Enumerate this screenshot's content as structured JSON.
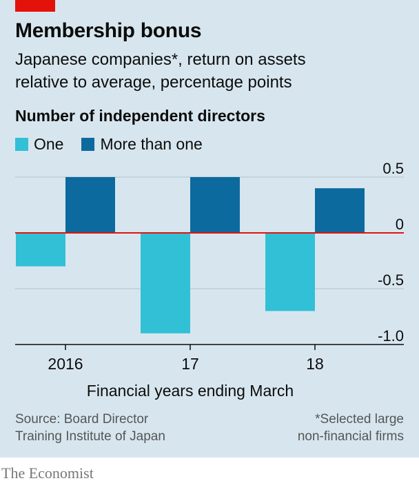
{
  "header": {
    "title": "Membership bonus",
    "subtitle_line1": "Japanese companies*, return on assets",
    "subtitle_line2": "relative to average, percentage points"
  },
  "legend": {
    "title": "Number of independent directors",
    "items": [
      {
        "label": "One",
        "color": "#32c0d6"
      },
      {
        "label": "More than one",
        "color": "#0d6a9e"
      }
    ]
  },
  "chart_data": {
    "type": "bar",
    "categories": [
      "2016",
      "17",
      "18"
    ],
    "series": [
      {
        "name": "One",
        "values": [
          -0.3,
          -0.9,
          -0.7
        ],
        "color": "#32c0d6"
      },
      {
        "name": "More than one",
        "values": [
          0.5,
          0.5,
          0.4
        ],
        "color": "#0d6a9e"
      }
    ],
    "ylim": [
      -1.0,
      0.5
    ],
    "yticks": [
      0.5,
      0,
      -0.5,
      -1.0
    ],
    "ytick_labels": [
      "0.5",
      "0",
      "-0.5",
      "-1.0"
    ],
    "y_axis_side": "right",
    "grid": true,
    "zero_line_color": "#e3120b",
    "xlabel": "Financial years ending March",
    "title": "Membership bonus",
    "subtitle": "Japanese companies*, return on assets relative to average, percentage points"
  },
  "footer": {
    "source_line1": "Source: Board Director",
    "source_line2": "Training Institute of Japan",
    "note_line1": "*Selected large",
    "note_line2": "non-financial firms",
    "brand": "The Economist"
  },
  "colors": {
    "panel_background": "#d7e6ee",
    "accent_red": "#e3120b",
    "gridline": "#b2c3cc"
  }
}
